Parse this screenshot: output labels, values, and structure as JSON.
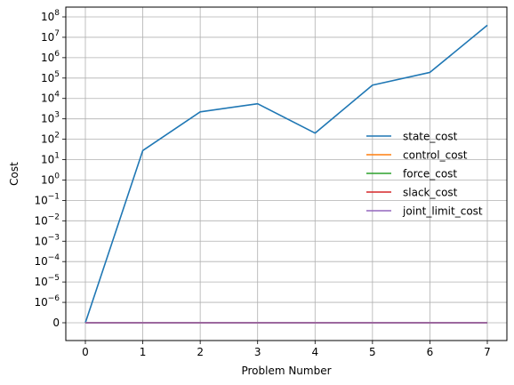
{
  "chart_data": {
    "type": "line",
    "title": "",
    "xlabel": "Problem Number",
    "ylabel": "Cost",
    "y_scale": "symlog",
    "grid": true,
    "legend_position": "center-right",
    "x": [
      0,
      1,
      2,
      3,
      4,
      5,
      6,
      7
    ],
    "xticks": [
      "0",
      "1",
      "2",
      "3",
      "4",
      "5",
      "6",
      "7"
    ],
    "yticks": [
      {
        "base": "0",
        "exp": ""
      },
      {
        "base": "10",
        "exp": "−6"
      },
      {
        "base": "10",
        "exp": "−5"
      },
      {
        "base": "10",
        "exp": "−4"
      },
      {
        "base": "10",
        "exp": "−3"
      },
      {
        "base": "10",
        "exp": "−2"
      },
      {
        "base": "10",
        "exp": "−1"
      },
      {
        "base": "10",
        "exp": "0"
      },
      {
        "base": "10",
        "exp": "1"
      },
      {
        "base": "10",
        "exp": "2"
      },
      {
        "base": "10",
        "exp": "3"
      },
      {
        "base": "10",
        "exp": "4"
      },
      {
        "base": "10",
        "exp": "5"
      },
      {
        "base": "10",
        "exp": "6"
      },
      {
        "base": "10",
        "exp": "7"
      },
      {
        "base": "10",
        "exp": "8"
      }
    ],
    "series": [
      {
        "name": "state_cost",
        "color": "#1f77b4",
        "values": [
          0,
          28,
          2200,
          5500,
          200,
          45000,
          190000,
          39000000
        ]
      },
      {
        "name": "control_cost",
        "color": "#ff7f0e",
        "values": [
          0,
          0,
          0,
          0,
          0,
          0,
          0,
          0
        ]
      },
      {
        "name": "force_cost",
        "color": "#2ca02c",
        "values": [
          0,
          0,
          0,
          0,
          0,
          0,
          0,
          0
        ]
      },
      {
        "name": "slack_cost",
        "color": "#d62728",
        "values": [
          0,
          0,
          0,
          0,
          0,
          0,
          0,
          0
        ]
      },
      {
        "name": "joint_limit_cost",
        "color": "#9467bd",
        "values": [
          0,
          0,
          0,
          0,
          0,
          0,
          0,
          0
        ]
      }
    ]
  }
}
